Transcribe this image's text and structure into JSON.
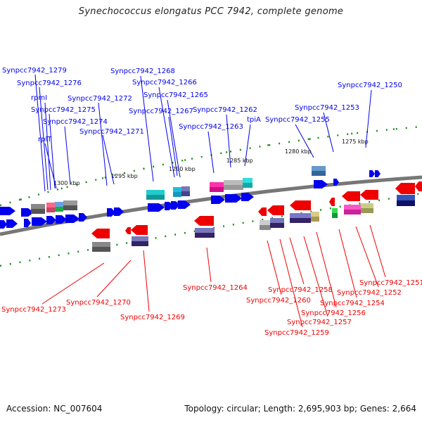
{
  "title": "Synechococcus elongatus PCC 7942, complete genome",
  "footer": {
    "accession": "Accession: NC_007604",
    "stats": "Topology: circular; Length: 2,695,903 bp; Genes: 2,664"
  },
  "colors": {
    "forward": "#0000ee",
    "reverse": "#ee0000",
    "backbone": "#777777",
    "ticks": "#228b22"
  },
  "scale_labels": [
    "1300 kbp",
    "1295 kbp",
    "1290 kbp",
    "1285 kbp",
    "1280 kbp",
    "1275 kbp"
  ],
  "top_labels": [
    "Synpcc7942_1279",
    "Synpcc7942_1276",
    "rpmI",
    "Synpcc7942_1275",
    "Synpcc7942_1274",
    "rplT",
    "Synpcc7942_1272",
    "Synpcc7942_1271",
    "Synpcc7942_1268",
    "Synpcc7942_1266",
    "Synpcc7942_1265",
    "Synpcc7942_1267",
    "Synpcc7942_1262",
    "Synpcc7942_1263",
    "tpiA",
    "Synpcc7942_1255",
    "Synpcc7942_1253",
    "Synpcc7942_1250"
  ],
  "bottom_labels": [
    "Synpcc7942_1273",
    "Synpcc7942_1270",
    "Synpcc7942_1269",
    "Synpcc7942_1264",
    "Synpcc7942_1258",
    "Synpcc7942_1260",
    "Synpcc7942_1259",
    "Synpcc7942_1257",
    "Synpcc7942_1256",
    "Synpcc7942_1254",
    "Synpcc7942_1252",
    "Synpcc7942_1251"
  ]
}
